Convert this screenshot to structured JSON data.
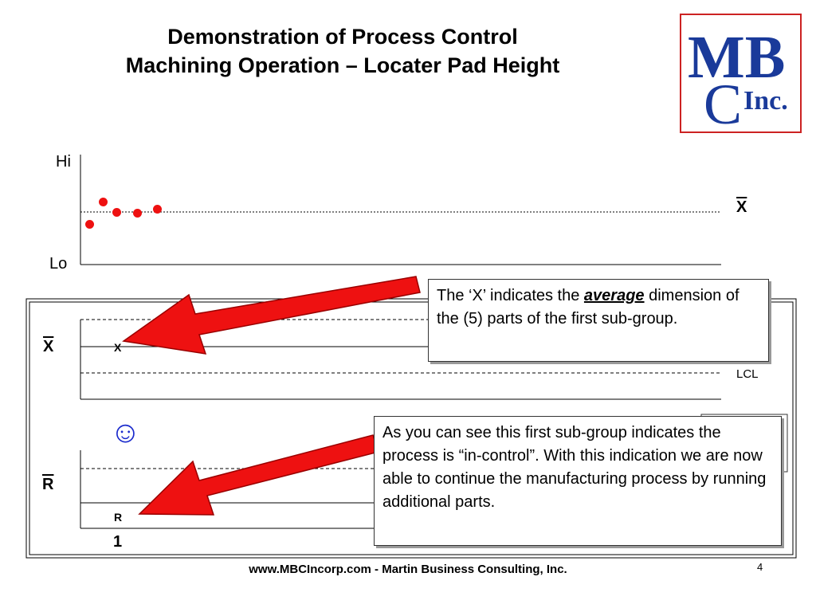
{
  "slide": {
    "title_line1": "Demonstration of Process Control",
    "title_line2": "Machining Operation – Locater Pad Height",
    "logo_text": "MBC Inc.",
    "footer": "www.MBCIncorp.com  -  Martin Business Consulting, Inc.",
    "page_number": "4"
  },
  "top_chart": {
    "hi_label": "Hi",
    "lo_label": "Lo",
    "mean_label": "X",
    "points": [
      -0.25,
      0.22,
      0.0,
      -0.01,
      0.06
    ],
    "point_color": "#ee1111"
  },
  "xbar_chart": {
    "axis_label": "X",
    "point_label": "X",
    "lcl_label": "LCL"
  },
  "smiley": "☺",
  "range_chart": {
    "axis_label": "R",
    "point_label": "R",
    "subgroup_number": "1"
  },
  "callouts": {
    "average": {
      "before": "The ‘X’ indicates the ",
      "emphasis": "average",
      "after": " dimension of the (5) parts of the first sub-group."
    },
    "in_control": "As you can see this first sub-group indicates the process is “in-control”.  With this indication we are now able to continue the manufacturing process by running additional parts."
  },
  "colors": {
    "arrow": "#ee1111",
    "smiley": "#1a2acc",
    "logo": "#1a3a9a"
  }
}
